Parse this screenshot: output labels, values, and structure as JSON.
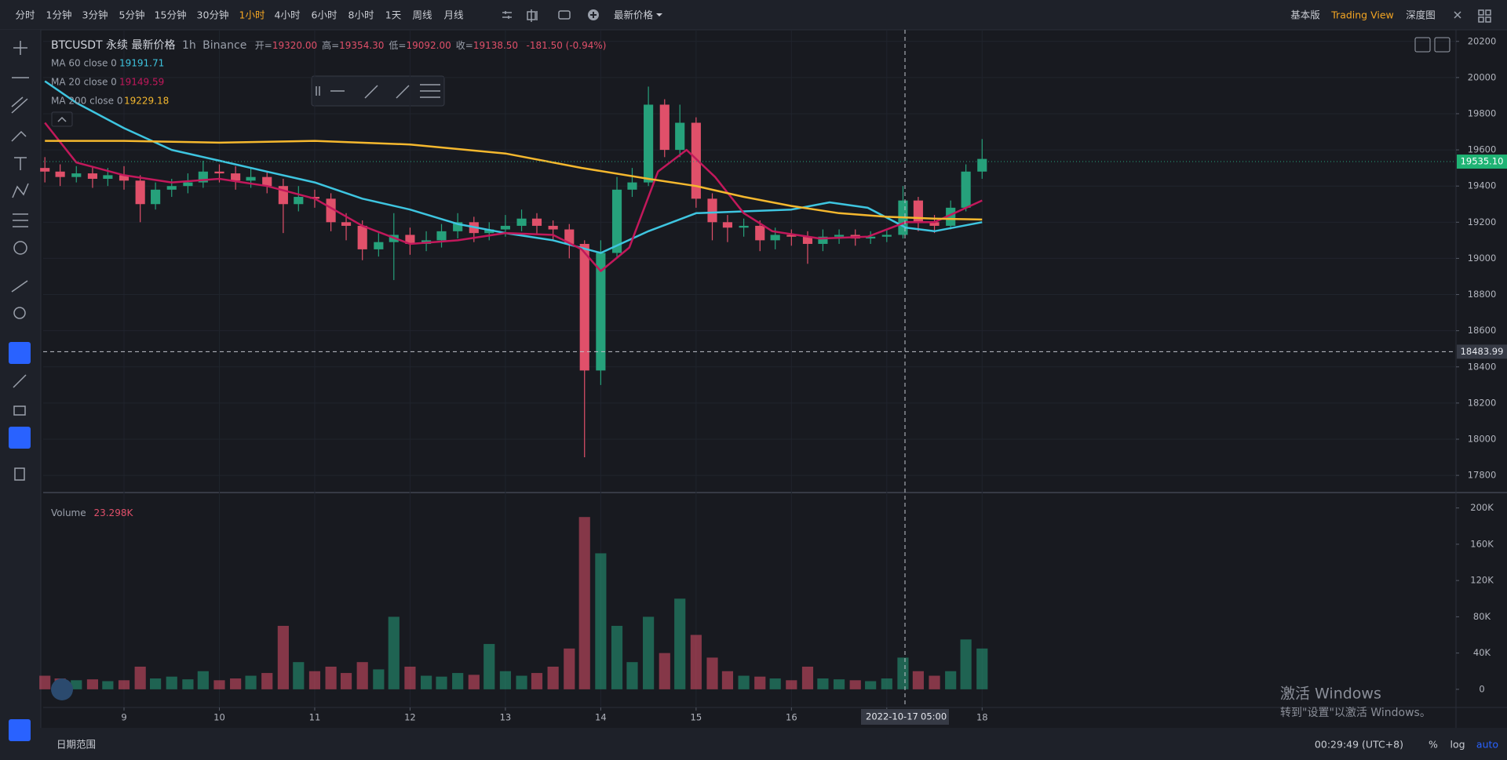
{
  "toolbar": {
    "intervals": [
      "分时",
      "1分钟",
      "3分钟",
      "5分钟",
      "15分钟",
      "30分钟",
      "1小时",
      "4小时",
      "6小时",
      "8小时",
      "1天",
      "周线",
      "月线"
    ],
    "price_mode": "最新价格",
    "views": [
      "基本版",
      "Trading View",
      "深度图"
    ]
  },
  "chart_data": {
    "type": "candlestick",
    "symbol": "BTCUSDT 永续 最新价格",
    "interval": "1h",
    "exchange": "Binance",
    "ohlc_legend": [
      {
        "label": "开=",
        "value": "19320.00"
      },
      {
        "label": "高=",
        "value": "19354.30"
      },
      {
        "label": "低=",
        "value": "19092.00"
      },
      {
        "label": "收=",
        "value": "19138.50"
      }
    ],
    "change": "-181.50 (-0.94%)",
    "xlim": [
      8.152,
      22.97
    ],
    "xticks": [
      9,
      10,
      11,
      12,
      13,
      14,
      15,
      16,
      17,
      18
    ],
    "ylim": [
      17705,
      20264
    ],
    "yticks": [
      17800,
      18000,
      18200,
      18400,
      18600,
      18800,
      19000,
      19200,
      19400,
      19600,
      19800,
      20000,
      20200
    ],
    "up_color": "#26a17b",
    "down_color": "#e0506a",
    "candles": {
      "x": [
        8.17,
        8.33,
        8.5,
        8.67,
        8.83,
        9,
        9.17,
        9.33,
        9.5,
        9.67,
        9.83,
        10,
        10.17,
        10.33,
        10.5,
        10.67,
        10.83,
        11,
        11.17,
        11.33,
        11.5,
        11.67,
        11.83,
        12,
        12.17,
        12.33,
        12.5,
        12.67,
        12.83,
        13,
        13.17,
        13.33,
        13.5,
        13.67,
        13.83,
        14,
        14.17,
        14.33,
        14.5,
        14.67,
        14.83,
        15,
        15.17,
        15.33,
        15.5,
        15.67,
        15.83,
        16,
        16.17,
        16.33,
        16.5,
        16.67,
        16.83,
        17,
        17.17,
        17.33,
        17.5,
        17.67,
        17.83,
        18
      ],
      "open": [
        19500,
        19480,
        19450,
        19470,
        19440,
        19460,
        19430,
        19300,
        19380,
        19400,
        19420,
        19480,
        19470,
        19430,
        19450,
        19400,
        19300,
        19340,
        19330,
        19200,
        19180,
        19050,
        19090,
        19130,
        19080,
        19100,
        19150,
        19200,
        19140,
        19160,
        19180,
        19220,
        19180,
        19160,
        19080,
        18380,
        19030,
        19380,
        19420,
        19850,
        19600,
        19750,
        19330,
        19200,
        19170,
        19180,
        19100,
        19130,
        19120,
        19080,
        19120,
        19130,
        19110,
        19120,
        19130,
        19320,
        19200,
        19180,
        19280,
        19480
      ],
      "high": [
        19560,
        19520,
        19510,
        19510,
        19500,
        19510,
        19460,
        19420,
        19440,
        19470,
        19540,
        19520,
        19510,
        19500,
        19480,
        19440,
        19400,
        19380,
        19360,
        19250,
        19210,
        19140,
        19250,
        19170,
        19150,
        19190,
        19250,
        19230,
        19200,
        19240,
        19270,
        19250,
        19210,
        19190,
        19100,
        19100,
        19450,
        19500,
        19950,
        19880,
        19850,
        19780,
        19360,
        19240,
        19220,
        19210,
        19170,
        19160,
        19150,
        19160,
        19160,
        19160,
        19150,
        19160,
        19400,
        19340,
        19240,
        19320,
        19520,
        19660
      ],
      "low": [
        19420,
        19400,
        19420,
        19390,
        19400,
        19380,
        19200,
        19270,
        19340,
        19360,
        19390,
        19420,
        19380,
        19390,
        19360,
        19140,
        19260,
        19280,
        19150,
        19100,
        18990,
        19010,
        18880,
        19020,
        19040,
        19060,
        19110,
        19090,
        19100,
        19120,
        19150,
        19130,
        19100,
        19000,
        17900,
        18300,
        19000,
        19340,
        19400,
        19560,
        19560,
        19280,
        19100,
        19090,
        19120,
        19040,
        19050,
        19070,
        18970,
        19040,
        19080,
        19070,
        19080,
        19090,
        19110,
        19150,
        19140,
        19160,
        19260,
        19440
      ],
      "close": [
        19480,
        19450,
        19470,
        19440,
        19460,
        19430,
        19300,
        19380,
        19400,
        19420,
        19480,
        19470,
        19430,
        19450,
        19400,
        19300,
        19340,
        19330,
        19200,
        19180,
        19050,
        19090,
        19130,
        19080,
        19100,
        19150,
        19200,
        19140,
        19160,
        19180,
        19220,
        19180,
        19160,
        19080,
        18380,
        19030,
        19380,
        19420,
        19850,
        19600,
        19750,
        19330,
        19200,
        19170,
        19180,
        19100,
        19130,
        19120,
        19080,
        19120,
        19130,
        19110,
        19120,
        19130,
        19320,
        19200,
        19180,
        19280,
        19480,
        19550
      ],
      "volume": [
        15000,
        12000,
        10000,
        11000,
        9000,
        10000,
        25000,
        12000,
        14000,
        11000,
        20000,
        10000,
        12000,
        15000,
        18000,
        70000,
        30000,
        20000,
        25000,
        18000,
        30000,
        22000,
        80000,
        25000,
        15000,
        14000,
        18000,
        16000,
        50000,
        20000,
        15000,
        18000,
        25000,
        45000,
        190000,
        150000,
        70000,
        30000,
        80000,
        40000,
        100000,
        60000,
        35000,
        20000,
        15000,
        14000,
        12000,
        10000,
        25000,
        12000,
        11000,
        10000,
        9000,
        12000,
        35000,
        20000,
        15000,
        20000,
        55000,
        45000
      ]
    },
    "ma_lines": [
      {
        "name": "MA 60 close 0",
        "legend_value": 19191.71,
        "color": "#3ec5e0",
        "x": [
          8.17,
          8.5,
          9,
          9.5,
          10,
          10.5,
          11,
          11.5,
          12,
          12.5,
          13,
          13.5,
          14,
          14.5,
          15,
          15.5,
          16,
          16.4,
          16.8,
          17.2,
          17.5,
          18
        ],
        "values": [
          19980,
          19860,
          19720,
          19600,
          19540,
          19480,
          19420,
          19330,
          19270,
          19190,
          19140,
          19100,
          19030,
          19150,
          19250,
          19260,
          19270,
          19310,
          19280,
          19170,
          19150,
          19200
        ]
      },
      {
        "name": "MA 20 close 0",
        "legend_value": 19149.59,
        "color": "#c2185b",
        "x": [
          8.17,
          8.5,
          9,
          9.5,
          10,
          10.5,
          11,
          11.5,
          12,
          12.5,
          13,
          13.5,
          13.8,
          14,
          14.3,
          14.6,
          14.9,
          15.2,
          15.5,
          15.8,
          16.3,
          16.8,
          17.2,
          17.5,
          18
        ],
        "values": [
          19750,
          19530,
          19460,
          19420,
          19440,
          19400,
          19330,
          19180,
          19080,
          19100,
          19140,
          19130,
          19050,
          18930,
          19060,
          19480,
          19600,
          19450,
          19250,
          19150,
          19110,
          19120,
          19200,
          19200,
          19320
        ]
      },
      {
        "name": "MA 200 close 0",
        "legend_value": 19229.18,
        "color": "#f5b82e",
        "x": [
          8.17,
          9,
          10,
          11,
          12,
          13,
          13.8,
          14.5,
          15,
          15.5,
          16,
          16.5,
          17,
          17.5,
          18
        ],
        "values": [
          19650,
          19650,
          19640,
          19650,
          19630,
          19580,
          19500,
          19440,
          19400,
          19340,
          19290,
          19250,
          19230,
          19220,
          19215
        ]
      }
    ],
    "last_price": {
      "value": 19535.1,
      "label": "19535.10"
    },
    "crosshair_price": 18483.99,
    "crosshair_date": "2022-10-17",
    "crosshair_time": "05:00",
    "volume_title": "Volume",
    "volume_value": "23.298K",
    "vlim": [
      -20000,
      217000
    ],
    "vticks": [
      0,
      {
        "value": 40000,
        "label": "40K"
      },
      {
        "value": 80000,
        "label": "80K"
      },
      {
        "value": 120000,
        "label": "120K"
      },
      {
        "value": 160000,
        "label": "160K"
      },
      {
        "value": 200000,
        "label": "200K"
      }
    ]
  },
  "footer": {
    "date_range": "日期范围",
    "clock": "00:29:49 (UTC+8)",
    "percent": "%",
    "log": "log",
    "auto": "auto"
  },
  "watermark": {
    "title": "激活 Windows",
    "subtitle": "转到\"设置\"以激活 Windows。"
  }
}
